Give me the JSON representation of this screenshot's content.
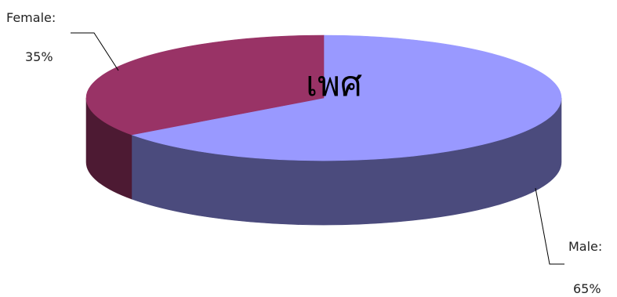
{
  "chart_data": {
    "type": "pie",
    "style": "3d",
    "title": "เพศ",
    "categories": [
      "Male",
      "Female"
    ],
    "values": [
      65,
      35
    ],
    "value_labels": [
      "65%",
      "35%"
    ],
    "category_labels": [
      "Male:",
      "Female:"
    ],
    "colors": {
      "Male": {
        "top": "#9999ff",
        "side": "#4b4b7d"
      },
      "Female": {
        "top": "#993366",
        "side": "#4d1a33"
      }
    },
    "legend": "none"
  }
}
